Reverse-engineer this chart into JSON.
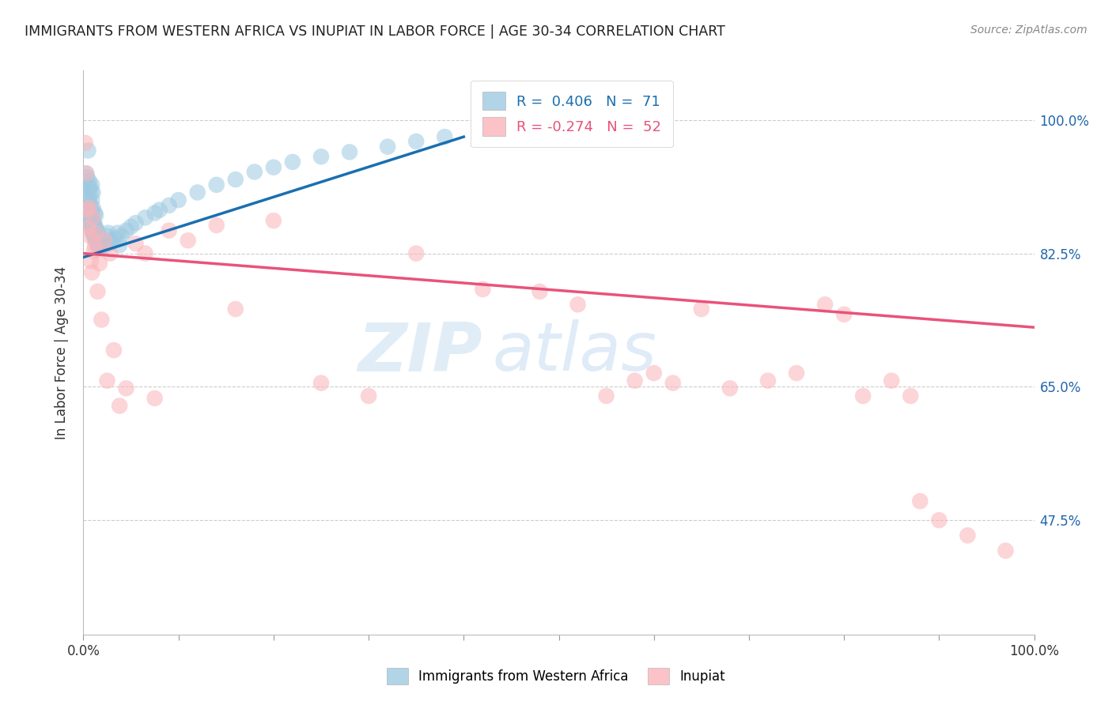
{
  "title": "IMMIGRANTS FROM WESTERN AFRICA VS INUPIAT IN LABOR FORCE | AGE 30-34 CORRELATION CHART",
  "source": "Source: ZipAtlas.com",
  "ylabel": "In Labor Force | Age 30-34",
  "xmin": 0.0,
  "xmax": 1.0,
  "ymin": 0.325,
  "ymax": 1.065,
  "ytick_positions": [
    0.475,
    0.65,
    0.825,
    1.0
  ],
  "ytick_labels": [
    "47.5%",
    "65.0%",
    "82.5%",
    "100.0%"
  ],
  "xtick_positions": [
    0.0,
    0.1,
    0.2,
    0.3,
    0.4,
    0.5,
    0.6,
    0.7,
    0.8,
    0.9,
    1.0
  ],
  "legend_text1": "R =  0.406   N =  71",
  "legend_text2": "R = -0.274   N =  52",
  "color_blue": "#9ecae1",
  "color_pink": "#fbb4b9",
  "color_blue_line": "#1a6faf",
  "color_pink_line": "#e8537a",
  "watermark_zip": "ZIP",
  "watermark_atlas": "atlas",
  "blue_scatter_x": [
    0.003,
    0.003,
    0.004,
    0.004,
    0.005,
    0.005,
    0.005,
    0.006,
    0.006,
    0.006,
    0.007,
    0.007,
    0.007,
    0.008,
    0.008,
    0.008,
    0.009,
    0.009,
    0.009,
    0.009,
    0.01,
    0.01,
    0.01,
    0.01,
    0.011,
    0.011,
    0.012,
    0.012,
    0.012,
    0.013,
    0.013,
    0.013,
    0.014,
    0.014,
    0.015,
    0.015,
    0.016,
    0.016,
    0.017,
    0.018,
    0.019,
    0.02,
    0.021,
    0.022,
    0.024,
    0.026,
    0.028,
    0.03,
    0.033,
    0.036,
    0.038,
    0.04,
    0.045,
    0.05,
    0.055,
    0.065,
    0.075,
    0.08,
    0.09,
    0.1,
    0.12,
    0.14,
    0.16,
    0.18,
    0.2,
    0.22,
    0.25,
    0.28,
    0.32,
    0.35,
    0.38
  ],
  "blue_scatter_y": [
    0.9,
    0.93,
    0.88,
    0.925,
    0.87,
    0.91,
    0.96,
    0.868,
    0.895,
    0.92,
    0.865,
    0.888,
    0.912,
    0.862,
    0.882,
    0.905,
    0.858,
    0.875,
    0.895,
    0.915,
    0.852,
    0.868,
    0.885,
    0.905,
    0.848,
    0.865,
    0.845,
    0.862,
    0.878,
    0.842,
    0.858,
    0.875,
    0.84,
    0.856,
    0.836,
    0.852,
    0.832,
    0.848,
    0.844,
    0.838,
    0.832,
    0.838,
    0.842,
    0.835,
    0.848,
    0.852,
    0.838,
    0.842,
    0.845,
    0.852,
    0.836,
    0.848,
    0.855,
    0.86,
    0.865,
    0.872,
    0.878,
    0.882,
    0.888,
    0.895,
    0.905,
    0.915,
    0.922,
    0.932,
    0.938,
    0.945,
    0.952,
    0.958,
    0.965,
    0.972,
    0.978
  ],
  "pink_scatter_x": [
    0.002,
    0.003,
    0.004,
    0.005,
    0.006,
    0.007,
    0.008,
    0.009,
    0.01,
    0.011,
    0.012,
    0.013,
    0.015,
    0.017,
    0.019,
    0.022,
    0.025,
    0.028,
    0.032,
    0.038,
    0.045,
    0.055,
    0.065,
    0.075,
    0.09,
    0.11,
    0.14,
    0.16,
    0.2,
    0.25,
    0.3,
    0.35,
    0.42,
    0.48,
    0.52,
    0.55,
    0.58,
    0.6,
    0.62,
    0.65,
    0.68,
    0.72,
    0.75,
    0.78,
    0.8,
    0.82,
    0.85,
    0.87,
    0.88,
    0.9,
    0.93,
    0.97
  ],
  "pink_scatter_y": [
    0.97,
    0.93,
    0.882,
    0.858,
    0.885,
    0.848,
    0.815,
    0.8,
    0.872,
    0.828,
    0.835,
    0.852,
    0.775,
    0.812,
    0.738,
    0.842,
    0.658,
    0.825,
    0.698,
    0.625,
    0.648,
    0.838,
    0.825,
    0.635,
    0.855,
    0.842,
    0.862,
    0.752,
    0.868,
    0.655,
    0.638,
    0.825,
    0.778,
    0.775,
    0.758,
    0.638,
    0.658,
    0.668,
    0.655,
    0.752,
    0.648,
    0.658,
    0.668,
    0.758,
    0.745,
    0.638,
    0.658,
    0.638,
    0.5,
    0.475,
    0.455,
    0.435
  ],
  "blue_line_x": [
    0.0,
    0.4
  ],
  "blue_line_y": [
    0.82,
    0.978
  ],
  "pink_line_x": [
    0.0,
    1.0
  ],
  "pink_line_y": [
    0.825,
    0.728
  ]
}
